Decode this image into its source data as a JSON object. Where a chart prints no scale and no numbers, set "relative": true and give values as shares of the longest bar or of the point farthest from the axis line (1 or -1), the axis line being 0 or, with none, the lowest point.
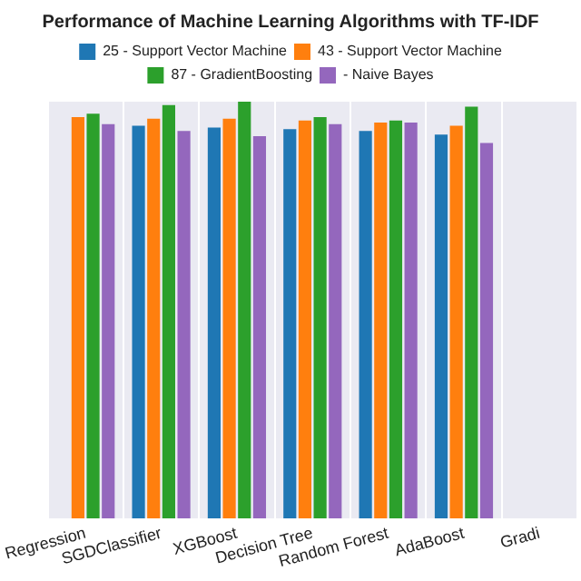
{
  "chart_data": {
    "type": "bar",
    "title": "Performance of Machine Learning Algorithms with TF-IDF",
    "relative": true,
    "categories": [
      "Regression",
      "SGDClassifier",
      "XGBoost",
      "Decision Tree",
      "Random Forest",
      "AdaBoost",
      "Gradi"
    ],
    "series": [
      {
        "name": "25 - Support Vector Machine",
        "color": "#1f77b4",
        "values": [
          null,
          0.942,
          0.938,
          0.934,
          0.93,
          0.921,
          null
        ]
      },
      {
        "name": "43 - Support Vector Machine",
        "color": "#ff7f0e",
        "values": [
          0.963,
          0.959,
          0.959,
          0.955,
          0.95,
          0.942,
          null
        ]
      },
      {
        "name": "87 - GradientBoosting",
        "color": "#2ca02c",
        "values": [
          0.971,
          0.992,
          1,
          0.963,
          0.955,
          0.988,
          null
        ]
      },
      {
        "name": "- Naive Bayes",
        "color": "#9467bd",
        "values": [
          0.946,
          0.93,
          0.917,
          0.946,
          0.95,
          0.901,
          null
        ]
      }
    ],
    "grid": "x",
    "legend": "top"
  }
}
